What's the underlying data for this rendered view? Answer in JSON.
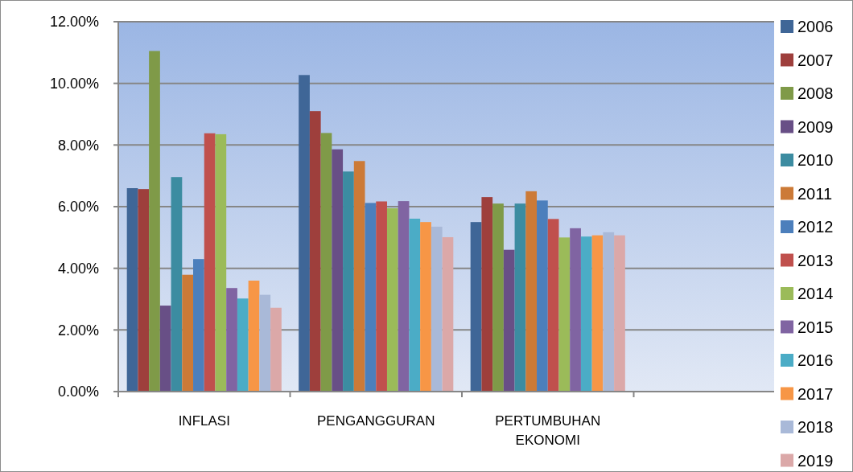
{
  "chart_data": {
    "type": "bar",
    "categories": [
      "INFLASI",
      "PENGANGGURAN",
      "PERTUMBUHAN EKONOMI",
      null
    ],
    "ylim": [
      0,
      12
    ],
    "yticks": [
      {
        "value": 0,
        "label": "0.00%"
      },
      {
        "value": 2,
        "label": "2.00%"
      },
      {
        "value": 4,
        "label": "4.00%"
      },
      {
        "value": 6,
        "label": "6.00%"
      },
      {
        "value": 8,
        "label": "8.00%"
      },
      {
        "value": 10,
        "label": "10.00%"
      },
      {
        "value": 12,
        "label": "12.00%"
      }
    ],
    "grid": "y",
    "legend": "right",
    "series": [
      {
        "name": "2006",
        "color": "#3f6697",
        "values": [
          6.6,
          10.27,
          5.5,
          null
        ]
      },
      {
        "name": "2007",
        "color": "#9e3f3c",
        "values": [
          6.57,
          9.1,
          6.31,
          null
        ]
      },
      {
        "name": "2008",
        "color": "#7f9a48",
        "values": [
          11.05,
          8.39,
          6.1,
          null
        ]
      },
      {
        "name": "2009",
        "color": "#684f86",
        "values": [
          2.79,
          7.86,
          4.6,
          null
        ]
      },
      {
        "name": "2010",
        "color": "#3c8ca1",
        "values": [
          6.96,
          7.14,
          6.1,
          null
        ]
      },
      {
        "name": "2011",
        "color": "#cc7a37",
        "values": [
          3.79,
          7.48,
          6.5,
          null
        ]
      },
      {
        "name": "2012",
        "color": "#4c7fbc",
        "values": [
          4.3,
          6.12,
          6.2,
          null
        ]
      },
      {
        "name": "2013",
        "color": "#c0504d",
        "values": [
          8.38,
          6.17,
          5.6,
          null
        ]
      },
      {
        "name": "2014",
        "color": "#9bbb59",
        "values": [
          8.35,
          5.95,
          5.0,
          null
        ]
      },
      {
        "name": "2015",
        "color": "#8064a2",
        "values": [
          3.36,
          6.18,
          5.3,
          null
        ]
      },
      {
        "name": "2016",
        "color": "#4bacc6",
        "values": [
          3.02,
          5.61,
          5.03,
          null
        ]
      },
      {
        "name": "2017",
        "color": "#f79646",
        "values": [
          3.6,
          5.5,
          5.07,
          null
        ]
      },
      {
        "name": "2018",
        "color": "#a9b9d8",
        "values": [
          3.14,
          5.35,
          5.17,
          null
        ]
      },
      {
        "name": "2019",
        "color": "#dba8a8",
        "values": [
          2.72,
          5.01,
          5.07,
          null
        ]
      }
    ]
  }
}
